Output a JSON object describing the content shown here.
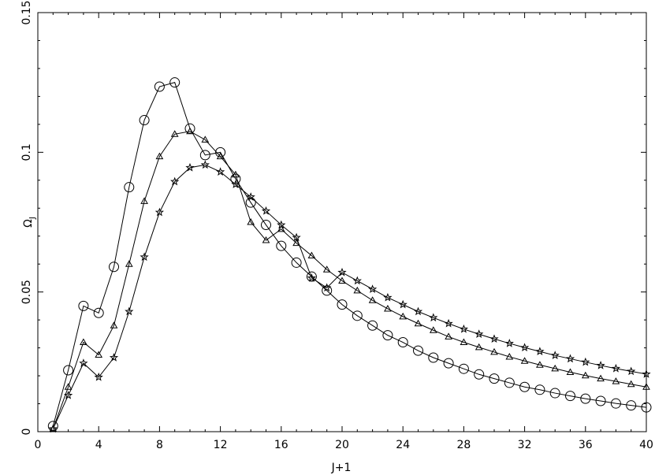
{
  "chart_data": {
    "type": "line",
    "xlabel": "J+1",
    "ylabel_main": "Ω",
    "ylabel_sub": "J",
    "xlim": [
      0,
      40
    ],
    "ylim": [
      0,
      0.15
    ],
    "x_ticks": [
      0,
      4,
      8,
      12,
      16,
      20,
      24,
      28,
      32,
      36,
      40
    ],
    "x_tick_labels": [
      "0",
      "4",
      "8",
      "12",
      "16",
      "20",
      "24",
      "28",
      "32",
      "36",
      "40"
    ],
    "y_ticks": [
      0,
      0.05,
      0.1,
      0.15
    ],
    "y_tick_labels": [
      "0",
      "0.05",
      "0.1",
      "0.15"
    ],
    "grid": false,
    "series": [
      {
        "marker": "circle",
        "x": [
          1,
          2,
          3,
          4,
          5,
          6,
          7,
          8,
          9,
          10,
          11,
          12,
          13,
          14,
          15,
          16,
          17,
          18,
          19,
          20,
          21,
          22,
          23,
          24,
          25,
          26,
          27,
          28,
          29,
          30,
          31,
          32,
          33,
          34,
          35,
          36,
          37,
          38,
          39,
          40
        ],
        "values": [
          0.002,
          0.022,
          0.045,
          0.0425,
          0.059,
          0.0875,
          0.1115,
          0.1235,
          0.125,
          0.1085,
          0.099,
          0.1,
          0.0905,
          0.082,
          0.074,
          0.0665,
          0.0605,
          0.0555,
          0.0505,
          0.0455,
          0.0415,
          0.038,
          0.0345,
          0.032,
          0.029,
          0.0265,
          0.0245,
          0.0225,
          0.0205,
          0.019,
          0.0175,
          0.016,
          0.015,
          0.0138,
          0.0128,
          0.0118,
          0.011,
          0.0101,
          0.0094,
          0.0087
        ]
      },
      {
        "marker": "triangle",
        "x": [
          1,
          2,
          3,
          4,
          5,
          6,
          7,
          8,
          9,
          10,
          11,
          12,
          13,
          14,
          15,
          16,
          17,
          18,
          19,
          20,
          21,
          22,
          23,
          24,
          25,
          26,
          27,
          28,
          29,
          30,
          31,
          32,
          33,
          34,
          35,
          36,
          37,
          38,
          39,
          40
        ],
        "values": [
          0.001,
          0.016,
          0.032,
          0.0275,
          0.038,
          0.06,
          0.0825,
          0.0985,
          0.1065,
          0.1075,
          0.1045,
          0.0985,
          0.092,
          0.075,
          0.0685,
          0.0725,
          0.0675,
          0.063,
          0.058,
          0.054,
          0.0505,
          0.047,
          0.044,
          0.0412,
          0.0387,
          0.0363,
          0.034,
          0.032,
          0.0302,
          0.0285,
          0.0268,
          0.0253,
          0.0239,
          0.0226,
          0.0213,
          0.0201,
          0.019,
          0.018,
          0.017,
          0.016
        ]
      },
      {
        "marker": "star",
        "x": [
          1,
          2,
          3,
          4,
          5,
          6,
          7,
          8,
          9,
          10,
          11,
          12,
          13,
          14,
          15,
          16,
          17,
          18,
          19,
          20,
          21,
          22,
          23,
          24,
          25,
          26,
          27,
          28,
          29,
          30,
          31,
          32,
          33,
          34,
          35,
          36,
          37,
          38,
          39,
          40
        ],
        "values": [
          0.001,
          0.013,
          0.0245,
          0.0195,
          0.0265,
          0.043,
          0.0625,
          0.0785,
          0.0895,
          0.0945,
          0.0955,
          0.093,
          0.0885,
          0.084,
          0.079,
          0.074,
          0.0695,
          0.055,
          0.0515,
          0.057,
          0.054,
          0.051,
          0.048,
          0.0455,
          0.043,
          0.0408,
          0.0387,
          0.0367,
          0.0349,
          0.0332,
          0.0316,
          0.0301,
          0.0287,
          0.0273,
          0.0261,
          0.0249,
          0.0237,
          0.0226,
          0.0216,
          0.0206
        ]
      }
    ]
  }
}
